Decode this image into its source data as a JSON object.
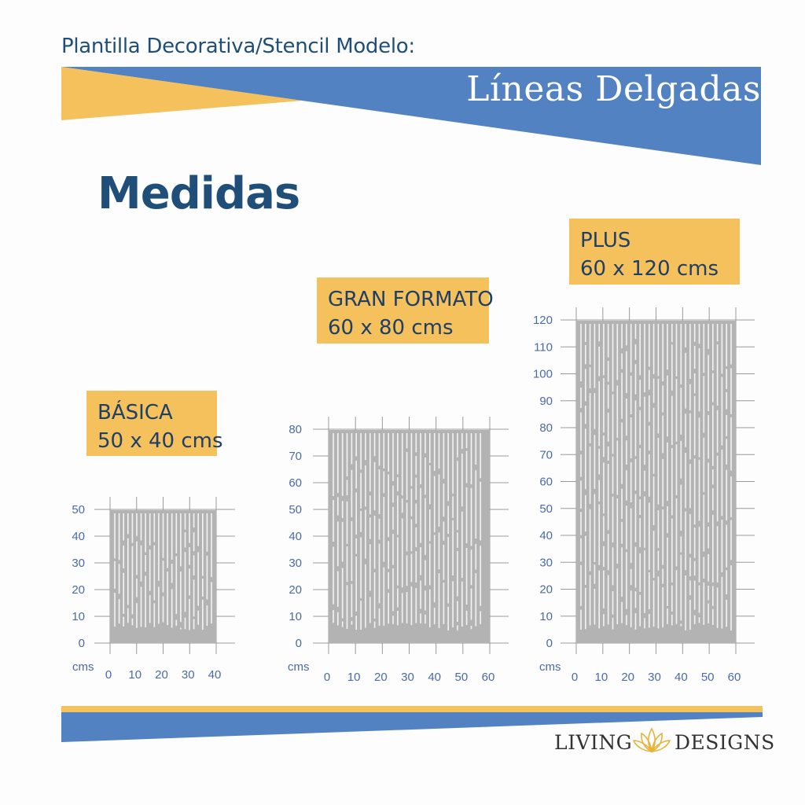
{
  "header": {
    "subtitle": "Plantilla Decorativa/Stencil Modelo:",
    "title": "Líneas Delgadas"
  },
  "section_title": "Medidas",
  "colors": {
    "blue": "#5282c1",
    "yellow": "#f4c15d",
    "navy": "#1f4e79",
    "stencil_gray": "#b3b3b3",
    "tick_blue": "#4a6aa8"
  },
  "sizes": [
    {
      "name": "BÁSICA",
      "dims": "50 x 40 cms",
      "unit": "cms",
      "x_ticks": [
        "0",
        "10",
        "20",
        "30",
        "40"
      ],
      "y_ticks": [
        "0",
        "10",
        "20",
        "30",
        "40",
        "50"
      ]
    },
    {
      "name": "GRAN FORMATO",
      "dims": "60 x 80 cms",
      "unit": "cms",
      "x_ticks": [
        "0",
        "10",
        "20",
        "30",
        "40",
        "50",
        "60"
      ],
      "y_ticks": [
        "0",
        "10",
        "20",
        "30",
        "40",
        "50",
        "60",
        "70",
        "80"
      ]
    },
    {
      "name": "PLUS",
      "dims": "60 x 120 cms",
      "unit": "cms",
      "x_ticks": [
        "0",
        "10",
        "20",
        "30",
        "40",
        "50",
        "60"
      ],
      "y_ticks": [
        "0",
        "10",
        "20",
        "30",
        "40",
        "50",
        "60",
        "70",
        "80",
        "90",
        "100",
        "110",
        "120"
      ]
    }
  ],
  "footer": {
    "brand_left": "LIVING",
    "brand_right": "DESIGNS",
    "logo_icon": "lotus-icon"
  }
}
